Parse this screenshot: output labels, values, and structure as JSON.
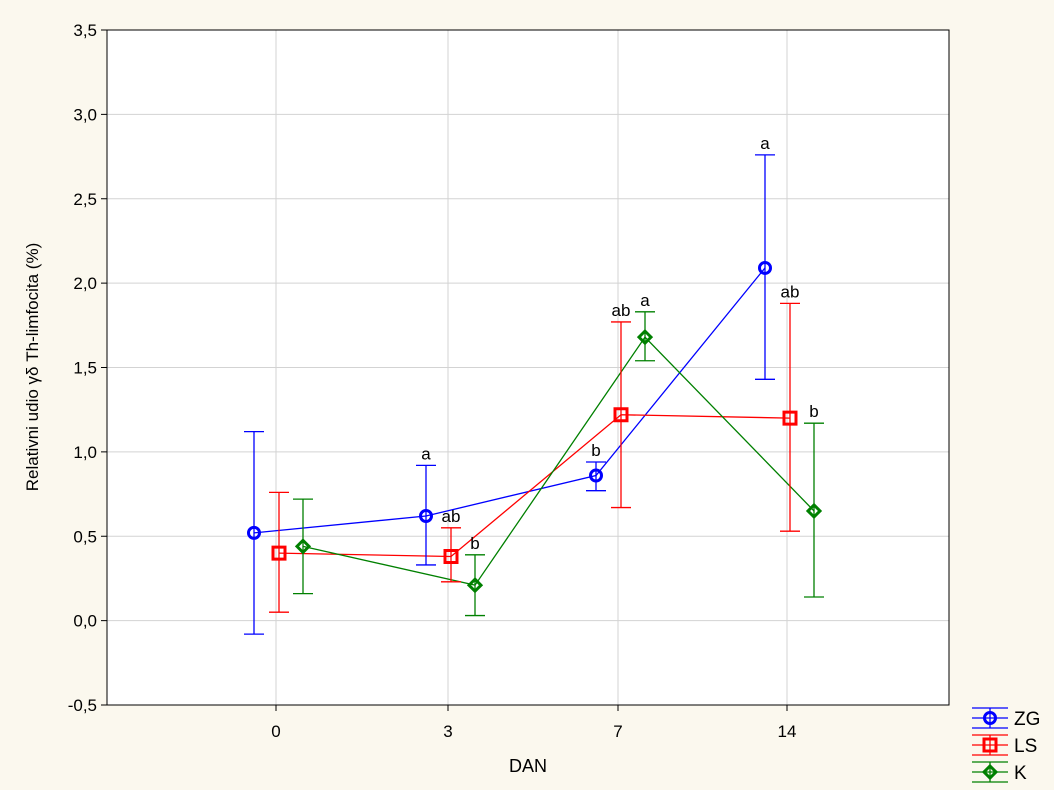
{
  "chart_data": {
    "type": "line",
    "title": "",
    "xlabel": "DAN",
    "ylabel": "Relativni udio γδ Th-limfocita (%)",
    "categories": [
      "0",
      "3",
      "7",
      "14"
    ],
    "ylim": [
      -0.5,
      3.5
    ],
    "yticks": [
      -0.5,
      0.0,
      0.5,
      1.0,
      1.5,
      2.0,
      2.5,
      3.0,
      3.5
    ],
    "ytick_labels": [
      "-0,5",
      "0,0",
      "0,5",
      "1,0",
      "1,5",
      "2,0",
      "2,5",
      "3,0",
      "3,5"
    ],
    "grid": true,
    "legend_position": "bottom-right, outside plot",
    "series": [
      {
        "name": "ZG",
        "color": "#0000ff",
        "marker": "circle",
        "values": [
          0.52,
          0.62,
          0.86,
          2.09
        ],
        "err_low": [
          -0.08,
          0.33,
          0.77,
          1.43
        ],
        "err_high": [
          1.12,
          0.92,
          0.94,
          2.76
        ],
        "labels": [
          "",
          "a",
          "b",
          "a"
        ]
      },
      {
        "name": "LS",
        "color": "#ff0000",
        "marker": "square",
        "values": [
          0.4,
          0.38,
          1.22,
          1.2
        ],
        "err_low": [
          0.05,
          0.23,
          0.67,
          0.53
        ],
        "err_high": [
          0.76,
          0.55,
          1.77,
          1.88
        ],
        "labels": [
          "",
          "ab",
          "ab",
          "ab"
        ]
      },
      {
        "name": "K",
        "color": "#008000",
        "marker": "diamond",
        "values": [
          0.44,
          0.21,
          1.68,
          0.65
        ],
        "err_low": [
          0.16,
          0.03,
          1.54,
          0.14
        ],
        "err_high": [
          0.72,
          0.39,
          1.83,
          1.17
        ],
        "labels": [
          "",
          "b",
          "a",
          "b"
        ]
      }
    ]
  }
}
